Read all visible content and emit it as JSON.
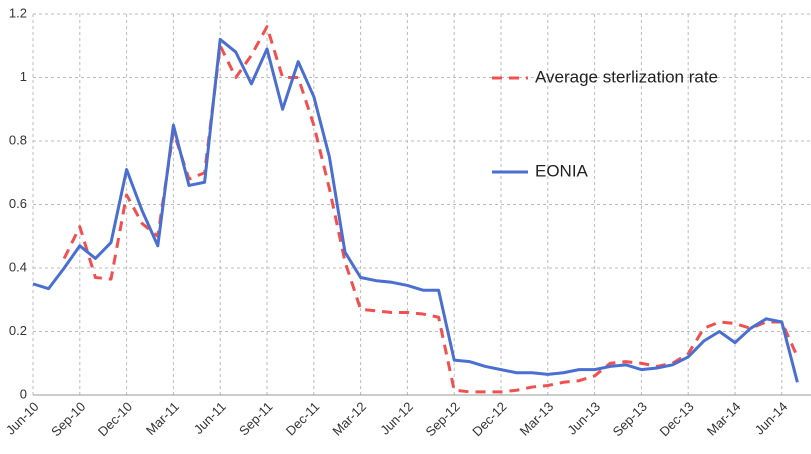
{
  "chart_data": {
    "type": "line",
    "categories": [
      "Jun-10",
      null,
      null,
      "Sep-10",
      null,
      null,
      "Dec-10",
      null,
      null,
      "Mar-11",
      null,
      null,
      "Jun-11",
      null,
      null,
      "Sep-11",
      null,
      null,
      "Dec-11",
      null,
      null,
      "Mar-12",
      null,
      null,
      "Jun-12",
      null,
      null,
      "Sep-12",
      null,
      null,
      "Dec-12",
      null,
      null,
      "Mar-13",
      null,
      null,
      "Jun-13",
      null,
      null,
      "Sep-13",
      null,
      null,
      "Dec-13",
      null,
      null,
      "Mar-14",
      null,
      null,
      "Jun-14",
      null
    ],
    "series": [
      {
        "name": "Average sterlization rate",
        "color": "#f0504f",
        "dashed": true,
        "values": [
          null,
          null,
          0.43,
          0.53,
          0.37,
          0.365,
          0.63,
          0.54,
          0.5,
          0.83,
          0.68,
          0.7,
          1.1,
          1.0,
          1.07,
          1.16,
          1.0,
          1.0,
          0.85,
          0.65,
          0.42,
          0.27,
          0.265,
          0.26,
          0.26,
          0.255,
          0.245,
          0.015,
          0.01,
          0.01,
          0.01,
          0.015,
          0.025,
          0.03,
          0.04,
          0.045,
          0.06,
          0.1,
          0.105,
          0.1,
          0.09,
          0.1,
          0.13,
          0.21,
          0.23,
          0.225,
          0.21,
          0.23,
          0.23,
          0.12
        ]
      },
      {
        "name": "EONIA",
        "color": "#4a6fd1",
        "dashed": false,
        "values": [
          0.35,
          0.335,
          0.4,
          0.47,
          0.43,
          0.48,
          0.71,
          0.58,
          0.47,
          0.85,
          0.66,
          0.67,
          1.12,
          1.08,
          0.98,
          1.09,
          0.9,
          1.05,
          0.94,
          0.75,
          0.45,
          0.37,
          0.36,
          0.355,
          0.345,
          0.33,
          0.33,
          0.11,
          0.105,
          0.09,
          0.08,
          0.07,
          0.07,
          0.065,
          0.07,
          0.08,
          0.08,
          0.09,
          0.095,
          0.08,
          0.085,
          0.095,
          0.12,
          0.17,
          0.2,
          0.165,
          0.21,
          0.24,
          0.23,
          0.04
        ]
      }
    ],
    "ylim": [
      0,
      1.2
    ],
    "yticks": [
      0,
      0.2,
      0.4,
      0.6,
      0.8,
      1,
      1.2
    ],
    "grid": true
  }
}
